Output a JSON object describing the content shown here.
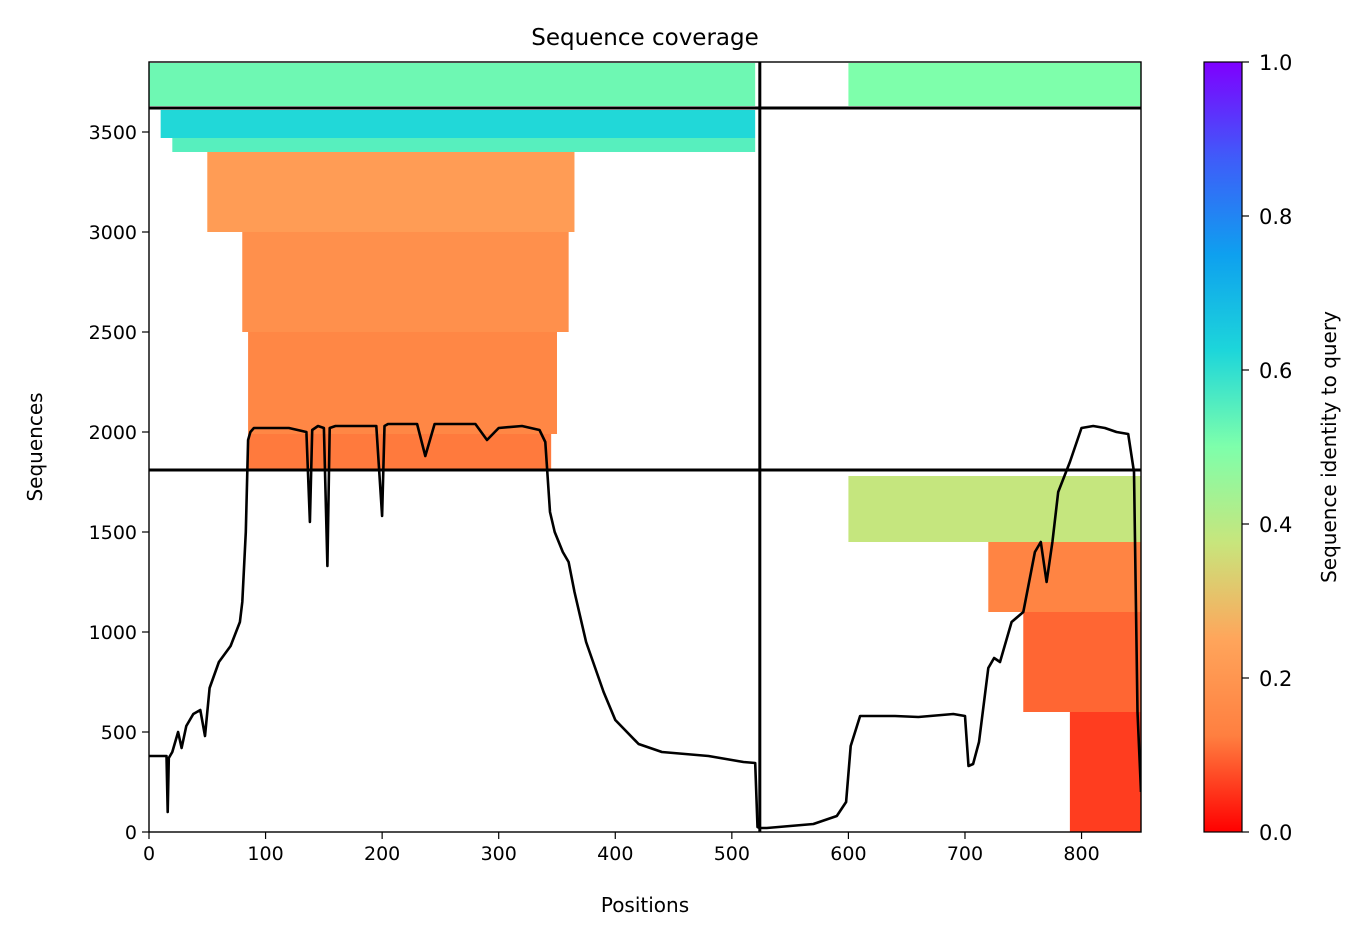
{
  "chart_data": {
    "type": "heatmap",
    "title": "Sequence coverage",
    "xlabel": "Positions",
    "ylabel": "Sequences",
    "xlim": [
      0,
      851
    ],
    "ylim": [
      0,
      3850
    ],
    "xticks": [
      0,
      100,
      200,
      300,
      400,
      500,
      600,
      700,
      800
    ],
    "yticks": [
      0,
      500,
      1000,
      1500,
      2000,
      2500,
      3000,
      3500
    ],
    "grid": false,
    "segment_boundaries": {
      "position": 524,
      "sequences": [
        1810,
        3620
      ]
    },
    "colorbar": {
      "label": "Sequence identity to query",
      "range": [
        0,
        1
      ],
      "ticks": [
        "0.0",
        "0.2",
        "0.4",
        "0.6",
        "0.8",
        "1.0"
      ],
      "colormap": "rainbow_r",
      "stops": [
        "#ff0000",
        "#ff7f40",
        "#ffa55b",
        "#c8e57c",
        "#7effab",
        "#1dd6da",
        "#0ea0ef",
        "#3f5cf9",
        "#7f00ff"
      ]
    },
    "coverage_blocks": [
      {
        "x": [
          85,
          345
        ],
        "y": [
          1810,
          1990
        ],
        "identity": 0.12
      },
      {
        "x": [
          85,
          350
        ],
        "y": [
          1990,
          2500
        ],
        "identity": 0.15
      },
      {
        "x": [
          80,
          360
        ],
        "y": [
          2500,
          3000
        ],
        "identity": 0.18
      },
      {
        "x": [
          50,
          365
        ],
        "y": [
          3000,
          3400
        ],
        "identity": 0.22
      },
      {
        "x": [
          20,
          520
        ],
        "y": [
          3400,
          3470
        ],
        "identity": 0.55
      },
      {
        "x": [
          10,
          520
        ],
        "y": [
          3470,
          3610
        ],
        "identity": 0.62
      },
      {
        "x": [
          0,
          520
        ],
        "y": [
          3630,
          3845
        ],
        "identity": 0.52
      },
      {
        "x": [
          600,
          851
        ],
        "y": [
          1450,
          1780
        ],
        "identity": 0.38
      },
      {
        "x": [
          720,
          851
        ],
        "y": [
          1100,
          1450
        ],
        "identity": 0.14
      },
      {
        "x": [
          750,
          851
        ],
        "y": [
          600,
          1100
        ],
        "identity": 0.1
      },
      {
        "x": [
          790,
          851
        ],
        "y": [
          0,
          600
        ],
        "identity": 0.06
      },
      {
        "x": [
          600,
          851
        ],
        "y": [
          3630,
          3845
        ],
        "identity": 0.5
      }
    ],
    "series": [
      {
        "type": "line",
        "color": "#000000",
        "x": [
          0,
          15,
          16,
          17,
          20,
          25,
          28,
          32,
          38,
          44,
          48,
          52,
          60,
          70,
          78,
          80,
          83,
          85,
          87,
          90,
          95,
          120,
          135,
          138,
          140,
          145,
          150,
          153,
          155,
          160,
          195,
          200,
          202,
          205,
          230,
          237,
          245,
          280,
          290,
          300,
          320,
          335,
          340,
          344,
          348,
          355,
          360,
          365,
          375,
          390,
          400,
          420,
          440,
          460,
          480,
          500,
          510,
          520,
          522,
          524,
          530,
          540,
          570,
          590,
          598,
          602,
          610,
          640,
          660,
          690,
          700,
          703,
          707,
          712,
          720,
          725,
          730,
          740,
          750,
          760,
          765,
          770,
          775,
          780,
          790,
          800,
          810,
          820,
          830,
          840,
          845,
          848,
          851
        ],
        "y": [
          380,
          380,
          100,
          370,
          400,
          500,
          420,
          530,
          590,
          610,
          480,
          720,
          850,
          930,
          1050,
          1150,
          1500,
          1960,
          2000,
          2020,
          2020,
          2020,
          2000,
          1550,
          2010,
          2030,
          2020,
          1330,
          2020,
          2030,
          2030,
          1580,
          2030,
          2040,
          2040,
          1880,
          2040,
          2040,
          1960,
          2020,
          2030,
          2010,
          1950,
          1600,
          1500,
          1400,
          1350,
          1200,
          950,
          700,
          560,
          440,
          400,
          390,
          380,
          360,
          350,
          345,
          25,
          20,
          20,
          25,
          40,
          80,
          150,
          430,
          580,
          580,
          575,
          590,
          580,
          330,
          340,
          450,
          820,
          870,
          850,
          1050,
          1100,
          1400,
          1450,
          1250,
          1450,
          1700,
          1850,
          2020,
          2030,
          2020,
          2000,
          1990,
          1800,
          600,
          200
        ]
      }
    ]
  }
}
